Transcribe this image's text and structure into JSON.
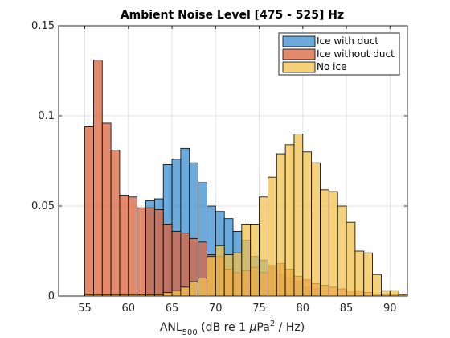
{
  "chart_data": {
    "type": "bar",
    "subtype": "overlapping-histogram",
    "title": "Ambient Noise Level [475 - 525] Hz",
    "xlabel": {
      "base": "ANL",
      "sub": "500",
      "mid": " (dB re 1 ",
      "mu": "μ",
      "pa": "Pa",
      "sup": "2",
      "tail": " / Hz)"
    },
    "ylabel": "",
    "xlim": [
      52,
      92
    ],
    "ylim": [
      0,
      0.15
    ],
    "xticks": [
      55,
      60,
      65,
      70,
      75,
      80,
      85,
      90
    ],
    "yticks": [
      0,
      0.05,
      0.1,
      0.15
    ],
    "ytick_labels": [
      "0",
      "0.05",
      "0.1",
      "0.15"
    ],
    "grid": true,
    "legend_position": "top-right",
    "series": [
      {
        "name": "Ice with duct",
        "color": "#3a8ecf",
        "bins": [
          {
            "x0": 62,
            "x1": 63,
            "y": 0.053
          },
          {
            "x0": 63,
            "x1": 64,
            "y": 0.054
          },
          {
            "x0": 64,
            "x1": 65,
            "y": 0.073
          },
          {
            "x0": 65,
            "x1": 66,
            "y": 0.076
          },
          {
            "x0": 66,
            "x1": 67,
            "y": 0.082
          },
          {
            "x0": 67,
            "x1": 68,
            "y": 0.074
          },
          {
            "x0": 68,
            "x1": 69,
            "y": 0.063
          },
          {
            "x0": 69,
            "x1": 70,
            "y": 0.05
          },
          {
            "x0": 70,
            "x1": 71,
            "y": 0.047
          },
          {
            "x0": 71,
            "x1": 72,
            "y": 0.043
          },
          {
            "x0": 72,
            "x1": 73,
            "y": 0.036
          },
          {
            "x0": 73,
            "x1": 74,
            "y": 0.031
          },
          {
            "x0": 74,
            "x1": 75,
            "y": 0.022
          },
          {
            "x0": 75,
            "x1": 76,
            "y": 0.02
          },
          {
            "x0": 76,
            "x1": 77,
            "y": 0.016
          },
          {
            "x0": 77,
            "x1": 78,
            "y": 0.012
          },
          {
            "x0": 78,
            "x1": 79,
            "y": 0.01
          },
          {
            "x0": 79,
            "x1": 80,
            "y": 0.008
          },
          {
            "x0": 80,
            "x1": 81,
            "y": 0.005
          },
          {
            "x0": 81,
            "x1": 82,
            "y": 0.004
          }
        ]
      },
      {
        "name": "Ice without duct",
        "color": "#d9633c",
        "bins": [
          {
            "x0": 55,
            "x1": 56,
            "y": 0.094
          },
          {
            "x0": 56,
            "x1": 57,
            "y": 0.131
          },
          {
            "x0": 57,
            "x1": 58,
            "y": 0.096
          },
          {
            "x0": 58,
            "x1": 59,
            "y": 0.081
          },
          {
            "x0": 59,
            "x1": 60,
            "y": 0.056
          },
          {
            "x0": 60,
            "x1": 61,
            "y": 0.055
          },
          {
            "x0": 61,
            "x1": 62,
            "y": 0.049
          },
          {
            "x0": 62,
            "x1": 63,
            "y": 0.049
          },
          {
            "x0": 63,
            "x1": 64,
            "y": 0.048
          },
          {
            "x0": 64,
            "x1": 65,
            "y": 0.04
          },
          {
            "x0": 65,
            "x1": 66,
            "y": 0.036
          },
          {
            "x0": 66,
            "x1": 67,
            "y": 0.035
          },
          {
            "x0": 67,
            "x1": 68,
            "y": 0.032
          },
          {
            "x0": 68,
            "x1": 69,
            "y": 0.03
          },
          {
            "x0": 69,
            "x1": 70,
            "y": 0.023
          },
          {
            "x0": 70,
            "x1": 71,
            "y": 0.022
          },
          {
            "x0": 71,
            "x1": 72,
            "y": 0.015
          },
          {
            "x0": 72,
            "x1": 73,
            "y": 0.013
          },
          {
            "x0": 73,
            "x1": 74,
            "y": 0.014
          },
          {
            "x0": 74,
            "x1": 75,
            "y": 0.016
          },
          {
            "x0": 75,
            "x1": 76,
            "y": 0.013
          },
          {
            "x0": 76,
            "x1": 77,
            "y": 0.017
          },
          {
            "x0": 77,
            "x1": 78,
            "y": 0.018
          },
          {
            "x0": 78,
            "x1": 79,
            "y": 0.015
          },
          {
            "x0": 79,
            "x1": 80,
            "y": 0.011
          },
          {
            "x0": 80,
            "x1": 81,
            "y": 0.009
          },
          {
            "x0": 81,
            "x1": 82,
            "y": 0.007
          },
          {
            "x0": 82,
            "x1": 83,
            "y": 0.006
          },
          {
            "x0": 83,
            "x1": 84,
            "y": 0.005
          },
          {
            "x0": 84,
            "x1": 85,
            "y": 0.004
          },
          {
            "x0": 85,
            "x1": 86,
            "y": 0.003
          },
          {
            "x0": 86,
            "x1": 87,
            "y": 0.003
          },
          {
            "x0": 87,
            "x1": 88,
            "y": 0.002
          },
          {
            "x0": 88,
            "x1": 89,
            "y": 0.001
          },
          {
            "x0": 89,
            "x1": 90,
            "y": 0.001
          },
          {
            "x0": 90,
            "x1": 91,
            "y": 0.001
          }
        ]
      },
      {
        "name": "No ice",
        "color": "#f2c14e",
        "bins": [
          {
            "x0": 55,
            "x1": 56,
            "y": 0.001
          },
          {
            "x0": 56,
            "x1": 57,
            "y": 0.001
          },
          {
            "x0": 57,
            "x1": 58,
            "y": 0.001
          },
          {
            "x0": 58,
            "x1": 59,
            "y": 0.001
          },
          {
            "x0": 59,
            "x1": 60,
            "y": 0.001
          },
          {
            "x0": 60,
            "x1": 61,
            "y": 0.001
          },
          {
            "x0": 61,
            "x1": 62,
            "y": 0.001
          },
          {
            "x0": 62,
            "x1": 63,
            "y": 0.001
          },
          {
            "x0": 63,
            "x1": 64,
            "y": 0.001
          },
          {
            "x0": 64,
            "x1": 65,
            "y": 0.002
          },
          {
            "x0": 65,
            "x1": 66,
            "y": 0.003
          },
          {
            "x0": 66,
            "x1": 67,
            "y": 0.005
          },
          {
            "x0": 67,
            "x1": 68,
            "y": 0.008
          },
          {
            "x0": 68,
            "x1": 69,
            "y": 0.01
          },
          {
            "x0": 69,
            "x1": 70,
            "y": 0.022
          },
          {
            "x0": 70,
            "x1": 71,
            "y": 0.028
          },
          {
            "x0": 71,
            "x1": 72,
            "y": 0.023
          },
          {
            "x0": 72,
            "x1": 73,
            "y": 0.024
          },
          {
            "x0": 73,
            "x1": 74,
            "y": 0.04
          },
          {
            "x0": 74,
            "x1": 75,
            "y": 0.04
          },
          {
            "x0": 75,
            "x1": 76,
            "y": 0.055
          },
          {
            "x0": 76,
            "x1": 77,
            "y": 0.066
          },
          {
            "x0": 77,
            "x1": 78,
            "y": 0.079
          },
          {
            "x0": 78,
            "x1": 79,
            "y": 0.084
          },
          {
            "x0": 79,
            "x1": 80,
            "y": 0.09
          },
          {
            "x0": 80,
            "x1": 81,
            "y": 0.08
          },
          {
            "x0": 81,
            "x1": 82,
            "y": 0.074
          },
          {
            "x0": 82,
            "x1": 83,
            "y": 0.059
          },
          {
            "x0": 83,
            "x1": 84,
            "y": 0.058
          },
          {
            "x0": 84,
            "x1": 85,
            "y": 0.05
          },
          {
            "x0": 85,
            "x1": 86,
            "y": 0.041
          },
          {
            "x0": 86,
            "x1": 87,
            "y": 0.025
          },
          {
            "x0": 87,
            "x1": 88,
            "y": 0.024
          },
          {
            "x0": 88,
            "x1": 89,
            "y": 0.012
          },
          {
            "x0": 89,
            "x1": 90,
            "y": 0.003
          },
          {
            "x0": 90,
            "x1": 91,
            "y": 0.003
          },
          {
            "x0": 91,
            "x1": 92,
            "y": 0.001
          }
        ]
      }
    ]
  }
}
